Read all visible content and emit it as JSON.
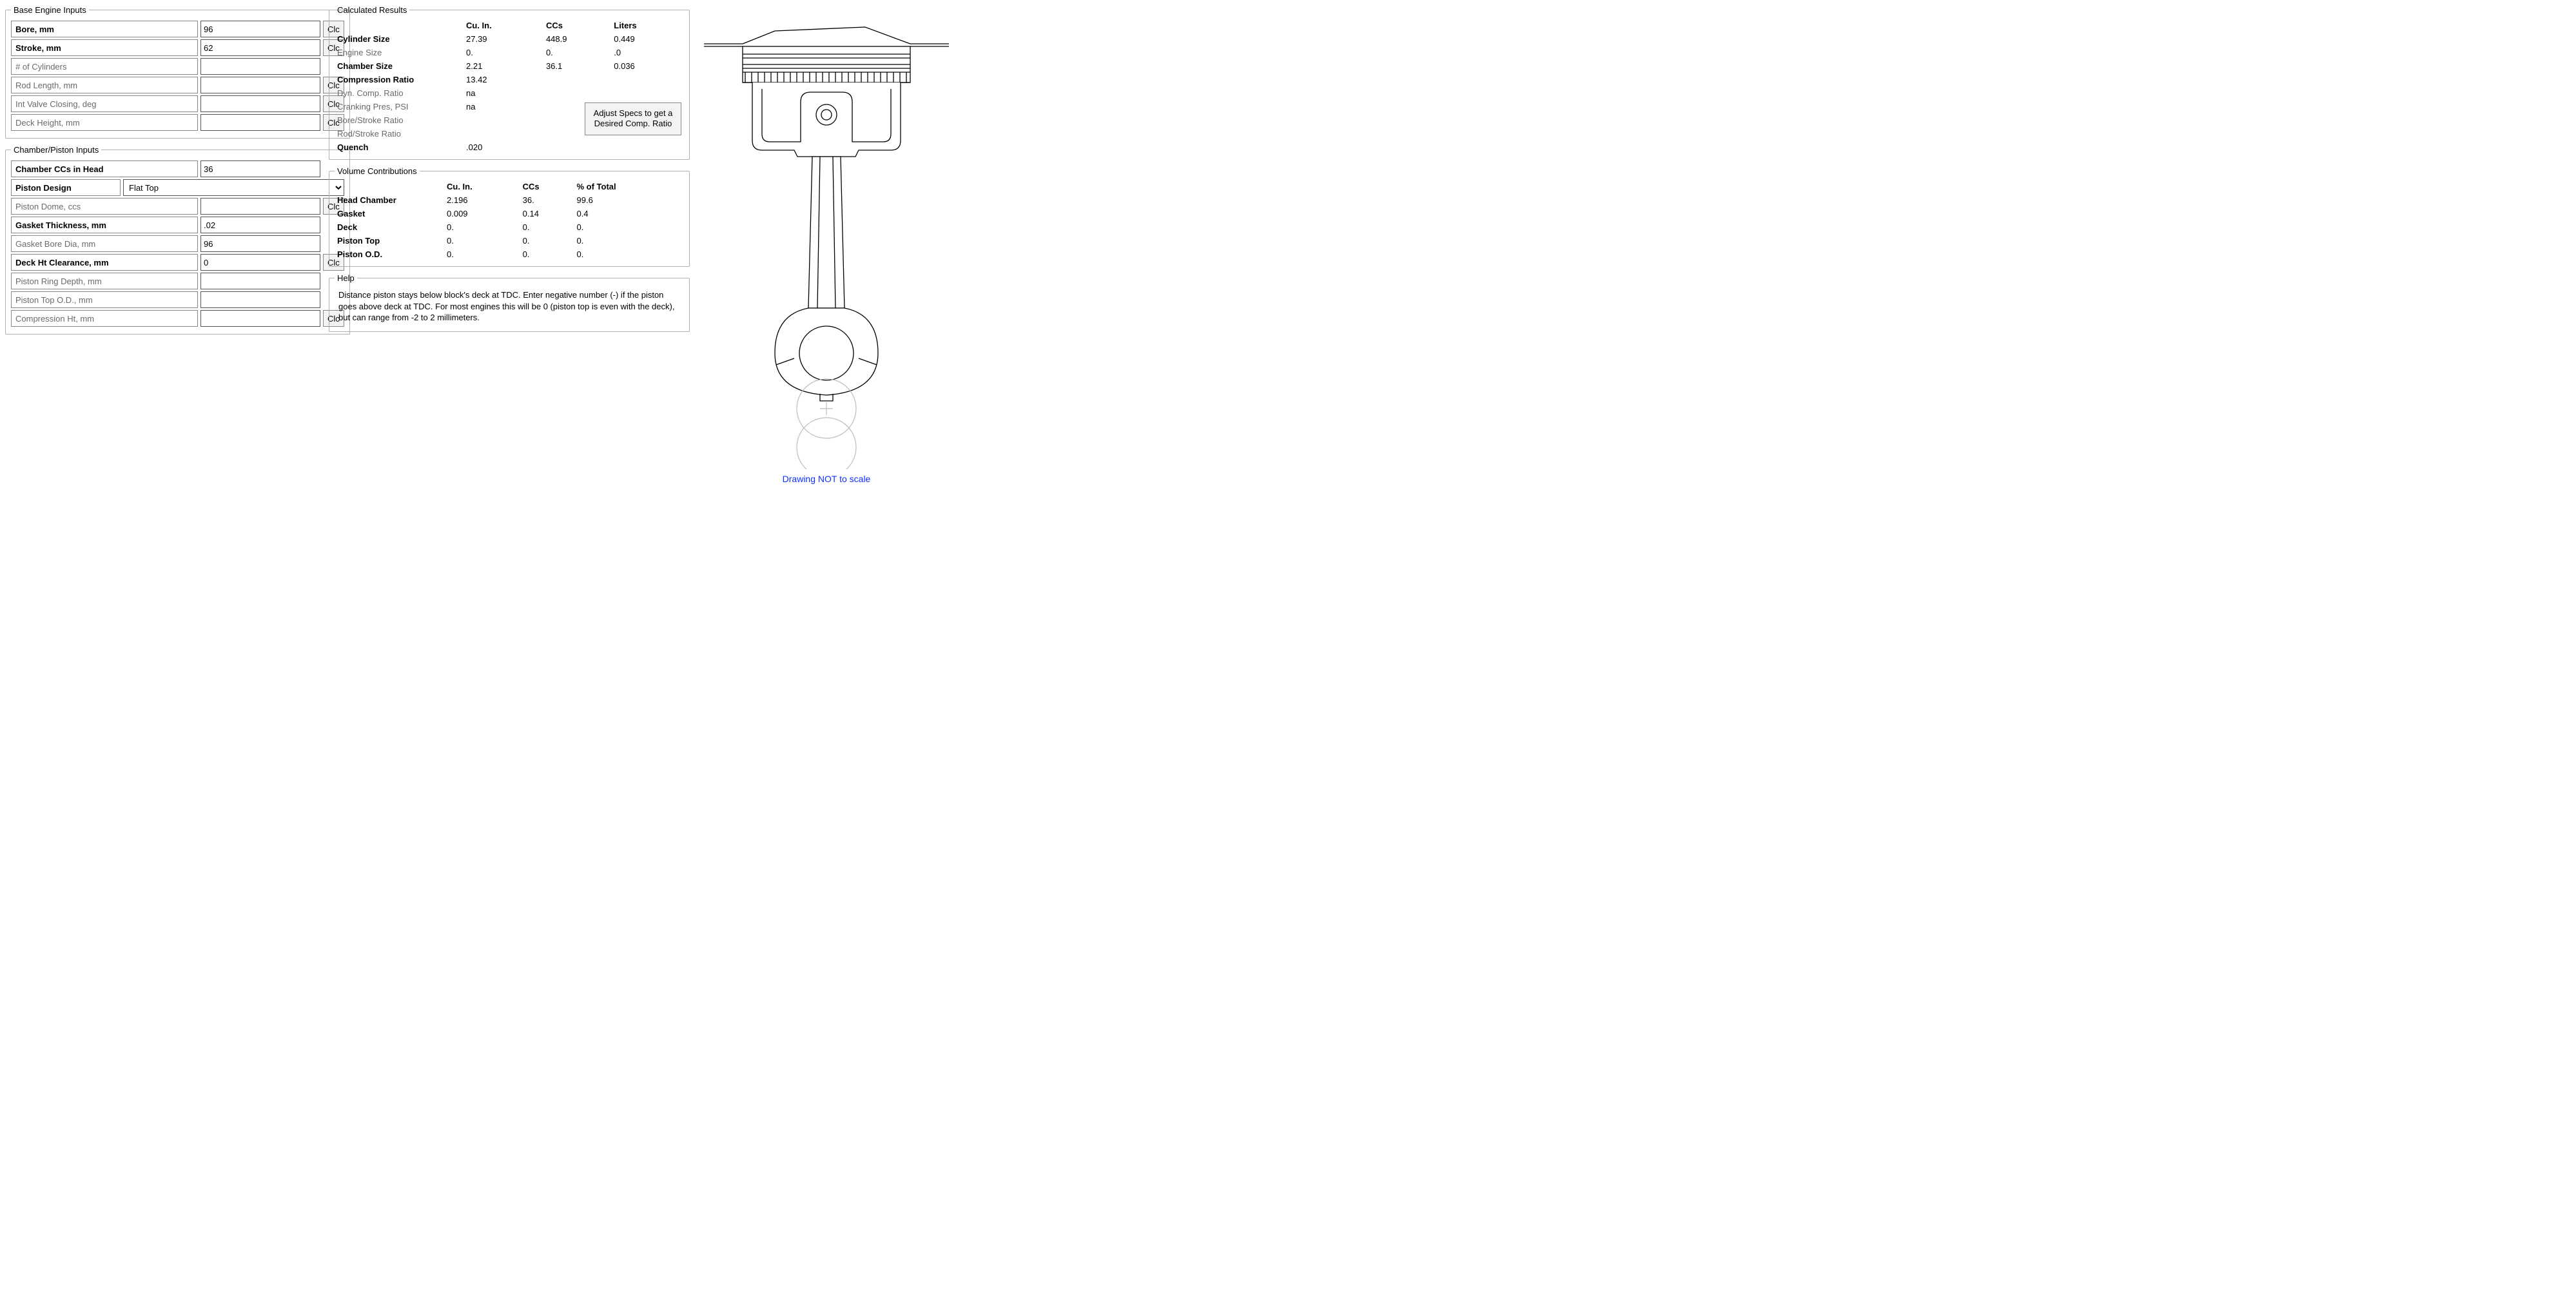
{
  "clc_label": "Clc",
  "base_inputs": {
    "legend": "Base Engine Inputs",
    "rows": [
      {
        "label": "Bore, mm",
        "value": "96",
        "bold": true,
        "has_clc": true
      },
      {
        "label": "Stroke, mm",
        "value": "62",
        "bold": true,
        "has_clc": true
      },
      {
        "label": "# of Cylinders",
        "value": "",
        "bold": false,
        "has_clc": false,
        "wide": true
      },
      {
        "label": "Rod Length, mm",
        "value": "",
        "bold": false,
        "has_clc": true
      },
      {
        "label": "Int Valve Closing, deg",
        "value": "",
        "bold": false,
        "has_clc": true
      },
      {
        "label": "Deck Height, mm",
        "value": "",
        "bold": false,
        "has_clc": true
      }
    ]
  },
  "chamber_inputs": {
    "legend": "Chamber/Piston Inputs",
    "rows_top": [
      {
        "label": "Chamber CCs in Head",
        "value": "36",
        "bold": true
      }
    ],
    "piston_design_label": "Piston Design",
    "piston_design_value": "Flat Top",
    "rows_bottom": [
      {
        "label": "Piston Dome, ccs",
        "value": "",
        "bold": false,
        "has_clc": true
      },
      {
        "label": "Gasket Thickness, mm",
        "value": ".02",
        "bold": true,
        "has_clc": false,
        "wide": true
      },
      {
        "label": "Gasket Bore Dia, mm",
        "value": "96",
        "bold": false,
        "has_clc": false,
        "wide": true
      },
      {
        "label": "Deck Ht Clearance, mm",
        "value": "0",
        "bold": true,
        "has_clc": true
      },
      {
        "label": "Piston Ring Depth, mm",
        "value": "",
        "bold": false,
        "has_clc": false,
        "wide": true
      },
      {
        "label": "Piston Top O.D., mm",
        "value": "",
        "bold": false,
        "has_clc": false,
        "wide": true
      },
      {
        "label": "Compression Ht, mm",
        "value": "",
        "bold": false,
        "has_clc": true
      }
    ]
  },
  "results": {
    "legend": "Calculated Results",
    "headers": [
      "",
      "Cu. In.",
      "CCs",
      "Liters"
    ],
    "rows": [
      {
        "label": "Cylinder Size",
        "vals": [
          "27.39",
          "448.9",
          "0.449"
        ],
        "bold": true
      },
      {
        "label": "Engine Size",
        "vals": [
          "0.",
          "0.",
          ".0"
        ],
        "bold": false
      },
      {
        "label": "Chamber Size",
        "vals": [
          "2.21",
          "36.1",
          "0.036"
        ],
        "bold": true
      },
      {
        "label": "Compression Ratio",
        "vals": [
          "13.42",
          "",
          ""
        ],
        "bold": true
      },
      {
        "label": "Dyn. Comp. Ratio",
        "vals": [
          "na",
          "",
          ""
        ],
        "bold": false
      },
      {
        "label": "Cranking Pres, PSI",
        "vals": [
          "na",
          "",
          ""
        ],
        "bold": false
      },
      {
        "label": "Bore/Stroke Ratio",
        "vals": [
          "",
          "",
          ""
        ],
        "bold": false
      },
      {
        "label": "Rod/Stroke Ratio",
        "vals": [
          "",
          "",
          ""
        ],
        "bold": false
      },
      {
        "label": "Quench",
        "vals": [
          ".020",
          "",
          ""
        ],
        "bold": true
      }
    ],
    "adjust_button": "Adjust Specs to get a Desired Comp. Ratio"
  },
  "volumes": {
    "legend": "Volume Contributions",
    "headers": [
      "",
      "Cu. In.",
      "CCs",
      "% of Total"
    ],
    "rows": [
      {
        "label": "Head Chamber",
        "vals": [
          "2.196",
          "36.",
          "99.6"
        ]
      },
      {
        "label": "Gasket",
        "vals": [
          "0.009",
          "0.14",
          "0.4"
        ]
      },
      {
        "label": "Deck",
        "vals": [
          "0.",
          "0.",
          "0."
        ]
      },
      {
        "label": "Piston Top",
        "vals": [
          "0.",
          "0.",
          "0."
        ]
      },
      {
        "label": "Piston O.D.",
        "vals": [
          "0.",
          "0.",
          "0."
        ]
      }
    ]
  },
  "help": {
    "legend": "Help",
    "text": "Distance piston stays below block's deck at TDC.  Enter negative number (-) if the piston goes above deck at TDC.  For most engines this will be 0 (piston top is even with the deck), but can range from -2 to 2 millimeters."
  },
  "diagram": {
    "caption": "Drawing NOT to scale",
    "colors": {
      "stroke": "#000000",
      "light": "#bdbdbd",
      "caption": "#1030ff",
      "fill": "#ffffff"
    }
  }
}
